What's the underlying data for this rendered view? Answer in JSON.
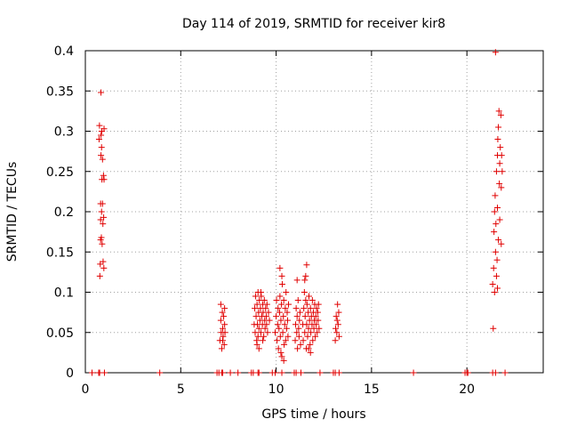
{
  "chart_data": {
    "type": "scatter",
    "title": "Day 114 of 2019, SRMTID for receiver kir8",
    "xlabel": "GPS time / hours",
    "ylabel": "SRMTID / TECUs",
    "xlim": [
      0,
      24
    ],
    "ylim": [
      0,
      0.4
    ],
    "grid": true,
    "x_ticks": [
      0,
      5,
      10,
      15,
      20
    ],
    "x_tick_labels": [
      "0",
      "5",
      "10",
      "15",
      "20"
    ],
    "y_ticks": [
      0,
      0.05,
      0.1,
      0.15,
      0.2,
      0.25,
      0.3,
      0.35,
      0.4
    ],
    "y_tick_labels": [
      "0",
      "0.05",
      "0.1",
      "0.15",
      "0.2",
      "0.25",
      "0.3",
      "0.35",
      "0.4"
    ],
    "marker": "plus",
    "color": "#e00000",
    "series": [
      {
        "name": "SRMTID",
        "points": [
          [
            0.35,
            0
          ],
          [
            0.7,
            0
          ],
          [
            0.75,
            0
          ],
          [
            1.0,
            0
          ],
          [
            0.72,
            0.29
          ],
          [
            0.74,
            0.307
          ],
          [
            0.76,
            0.12
          ],
          [
            0.78,
            0.135
          ],
          [
            0.8,
            0.165
          ],
          [
            0.8,
            0.19
          ],
          [
            0.8,
            0.21
          ],
          [
            0.82,
            0.27
          ],
          [
            0.82,
            0.295
          ],
          [
            0.82,
            0.348
          ],
          [
            0.84,
            0.168
          ],
          [
            0.85,
            0.2
          ],
          [
            0.85,
            0.28
          ],
          [
            0.86,
            0.3
          ],
          [
            0.87,
            0.24
          ],
          [
            0.88,
            0.16
          ],
          [
            0.9,
            0.21
          ],
          [
            0.9,
            0.265
          ],
          [
            0.92,
            0.185
          ],
          [
            0.93,
            0.138
          ],
          [
            0.95,
            0.245
          ],
          [
            0.96,
            0.193
          ],
          [
            0.97,
            0.13
          ],
          [
            0.98,
            0.24
          ],
          [
            0.98,
            0.303
          ],
          [
            3.9,
            0
          ],
          [
            6.9,
            0
          ],
          [
            7.0,
            0
          ],
          [
            7.15,
            0
          ],
          [
            7.2,
            0
          ],
          [
            7.6,
            0
          ],
          [
            8.0,
            0
          ],
          [
            8.7,
            0
          ],
          [
            8.8,
            0
          ],
          [
            9.05,
            0
          ],
          [
            9.1,
            0
          ],
          [
            9.8,
            0
          ],
          [
            9.95,
            0
          ],
          [
            10.3,
            0
          ],
          [
            10.95,
            0
          ],
          [
            11.05,
            0
          ],
          [
            11.3,
            0
          ],
          [
            12.3,
            0
          ],
          [
            13.0,
            0
          ],
          [
            13.1,
            0
          ],
          [
            13.3,
            0
          ],
          [
            17.2,
            0
          ],
          [
            19.9,
            0
          ],
          [
            20.0,
            0
          ],
          [
            20.05,
            0
          ],
          [
            21.35,
            0
          ],
          [
            21.5,
            0
          ],
          [
            22.0,
            0
          ],
          [
            7.05,
            0.04
          ],
          [
            7.1,
            0.065
          ],
          [
            7.12,
            0.05
          ],
          [
            7.15,
            0.03
          ],
          [
            7.18,
            0.075
          ],
          [
            7.2,
            0.055
          ],
          [
            7.22,
            0.045
          ],
          [
            7.25,
            0.07
          ],
          [
            7.28,
            0.035
          ],
          [
            7.3,
            0.06
          ],
          [
            7.3,
            0.08
          ],
          [
            7.32,
            0.05
          ],
          [
            7.1,
            0.085
          ],
          [
            7.2,
            0.04
          ],
          [
            8.85,
            0.06
          ],
          [
            8.88,
            0.08
          ],
          [
            8.9,
            0.05
          ],
          [
            8.92,
            0.095
          ],
          [
            8.95,
            0.07
          ],
          [
            8.98,
            0.04
          ],
          [
            9.0,
            0.085
          ],
          [
            9.02,
            0.06
          ],
          [
            9.05,
            0.1
          ],
          [
            9.05,
            0.045
          ],
          [
            9.08,
            0.075
          ],
          [
            9.1,
            0.055
          ],
          [
            9.12,
            0.09
          ],
          [
            9.15,
            0.065
          ],
          [
            9.18,
            0.08
          ],
          [
            9.2,
            0.05
          ],
          [
            9.22,
            0.095
          ],
          [
            9.25,
            0.07
          ],
          [
            9.28,
            0.06
          ],
          [
            9.3,
            0.085
          ],
          [
            9.32,
            0.075
          ],
          [
            9.35,
            0.045
          ],
          [
            9.38,
            0.09
          ],
          [
            9.4,
            0.065
          ],
          [
            9.42,
            0.055
          ],
          [
            9.45,
            0.08
          ],
          [
            9.48,
            0.07
          ],
          [
            9.5,
            0.06
          ],
          [
            9.52,
            0.085
          ],
          [
            9.55,
            0.05
          ],
          [
            9.6,
            0.075
          ],
          [
            9.65,
            0.065
          ],
          [
            9.0,
            0.035
          ],
          [
            9.1,
            0.03
          ],
          [
            9.2,
            0.1
          ],
          [
            9.3,
            0.04
          ],
          [
            9.95,
            0.05
          ],
          [
            10.0,
            0.07
          ],
          [
            10.02,
            0.09
          ],
          [
            10.05,
            0.04
          ],
          [
            10.08,
            0.06
          ],
          [
            10.1,
            0.08
          ],
          [
            10.12,
            0.03
          ],
          [
            10.15,
            0.055
          ],
          [
            10.18,
            0.075
          ],
          [
            10.2,
            0.095
          ],
          [
            10.22,
            0.045
          ],
          [
            10.25,
            0.065
          ],
          [
            10.28,
            0.085
          ],
          [
            10.3,
            0.02
          ],
          [
            10.32,
            0.11
          ],
          [
            10.35,
            0.05
          ],
          [
            10.38,
            0.07
          ],
          [
            10.4,
            0.09
          ],
          [
            10.42,
            0.035
          ],
          [
            10.45,
            0.06
          ],
          [
            10.48,
            0.08
          ],
          [
            10.5,
            0.04
          ],
          [
            10.52,
            0.1
          ],
          [
            10.55,
            0.055
          ],
          [
            10.58,
            0.075
          ],
          [
            10.6,
            0.065
          ],
          [
            10.62,
            0.045
          ],
          [
            10.65,
            0.085
          ],
          [
            10.2,
            0.13
          ],
          [
            10.3,
            0.12
          ],
          [
            10.25,
            0.025
          ],
          [
            10.4,
            0.015
          ],
          [
            11.0,
            0.04
          ],
          [
            11.02,
            0.06
          ],
          [
            11.05,
            0.08
          ],
          [
            11.08,
            0.05
          ],
          [
            11.1,
            0.07
          ],
          [
            11.12,
            0.03
          ],
          [
            11.15,
            0.09
          ],
          [
            11.18,
            0.055
          ],
          [
            11.2,
            0.045
          ],
          [
            11.22,
            0.065
          ],
          [
            11.25,
            0.075
          ],
          [
            11.28,
            0.035
          ],
          [
            11.1,
            0.115
          ],
          [
            11.4,
            0.06
          ],
          [
            11.42,
            0.04
          ],
          [
            11.45,
            0.08
          ],
          [
            11.48,
            0.1
          ],
          [
            11.5,
            0.05
          ],
          [
            11.52,
            0.07
          ],
          [
            11.55,
            0.09
          ],
          [
            11.58,
            0.03
          ],
          [
            11.6,
            0.06
          ],
          [
            11.62,
            0.085
          ],
          [
            11.65,
            0.045
          ],
          [
            11.68,
            0.075
          ],
          [
            11.7,
            0.055
          ],
          [
            11.72,
            0.095
          ],
          [
            11.75,
            0.065
          ],
          [
            11.78,
            0.035
          ],
          [
            11.8,
            0.08
          ],
          [
            11.82,
            0.05
          ],
          [
            11.85,
            0.07
          ],
          [
            11.88,
            0.06
          ],
          [
            11.9,
            0.09
          ],
          [
            11.92,
            0.04
          ],
          [
            11.95,
            0.075
          ],
          [
            11.98,
            0.055
          ],
          [
            12.0,
            0.065
          ],
          [
            12.02,
            0.085
          ],
          [
            12.05,
            0.045
          ],
          [
            12.08,
            0.07
          ],
          [
            12.1,
            0.06
          ],
          [
            12.12,
            0.08
          ],
          [
            12.15,
            0.05
          ],
          [
            12.18,
            0.075
          ],
          [
            12.2,
            0.065
          ],
          [
            12.22,
            0.085
          ],
          [
            12.25,
            0.055
          ],
          [
            11.5,
            0.115
          ],
          [
            11.55,
            0.12
          ],
          [
            11.6,
            0.134
          ],
          [
            11.7,
            0.03
          ],
          [
            11.8,
            0.025
          ],
          [
            13.1,
            0.04
          ],
          [
            13.12,
            0.055
          ],
          [
            13.15,
            0.07
          ],
          [
            13.18,
            0.05
          ],
          [
            13.2,
            0.065
          ],
          [
            13.22,
            0.085
          ],
          [
            13.25,
            0.06
          ],
          [
            13.28,
            0.075
          ],
          [
            13.3,
            0.045
          ],
          [
            21.35,
            0.11
          ],
          [
            21.38,
            0.055
          ],
          [
            21.4,
            0.13
          ],
          [
            21.42,
            0.175
          ],
          [
            21.45,
            0.2
          ],
          [
            21.45,
            0.1
          ],
          [
            21.48,
            0.22
          ],
          [
            21.5,
            0.15
          ],
          [
            21.5,
            0.398
          ],
          [
            21.52,
            0.185
          ],
          [
            21.55,
            0.25
          ],
          [
            21.55,
            0.12
          ],
          [
            21.58,
            0.14
          ],
          [
            21.6,
            0.27
          ],
          [
            21.6,
            0.105
          ],
          [
            21.62,
            0.29
          ],
          [
            21.65,
            0.305
          ],
          [
            21.65,
            0.165
          ],
          [
            21.68,
            0.325
          ],
          [
            21.7,
            0.235
          ],
          [
            21.72,
            0.26
          ],
          [
            21.72,
            0.19
          ],
          [
            21.75,
            0.28
          ],
          [
            21.78,
            0.32
          ],
          [
            21.8,
            0.23
          ],
          [
            21.8,
            0.16
          ],
          [
            21.82,
            0.27
          ],
          [
            21.85,
            0.25
          ],
          [
            21.6,
            0.205
          ]
        ]
      }
    ]
  }
}
